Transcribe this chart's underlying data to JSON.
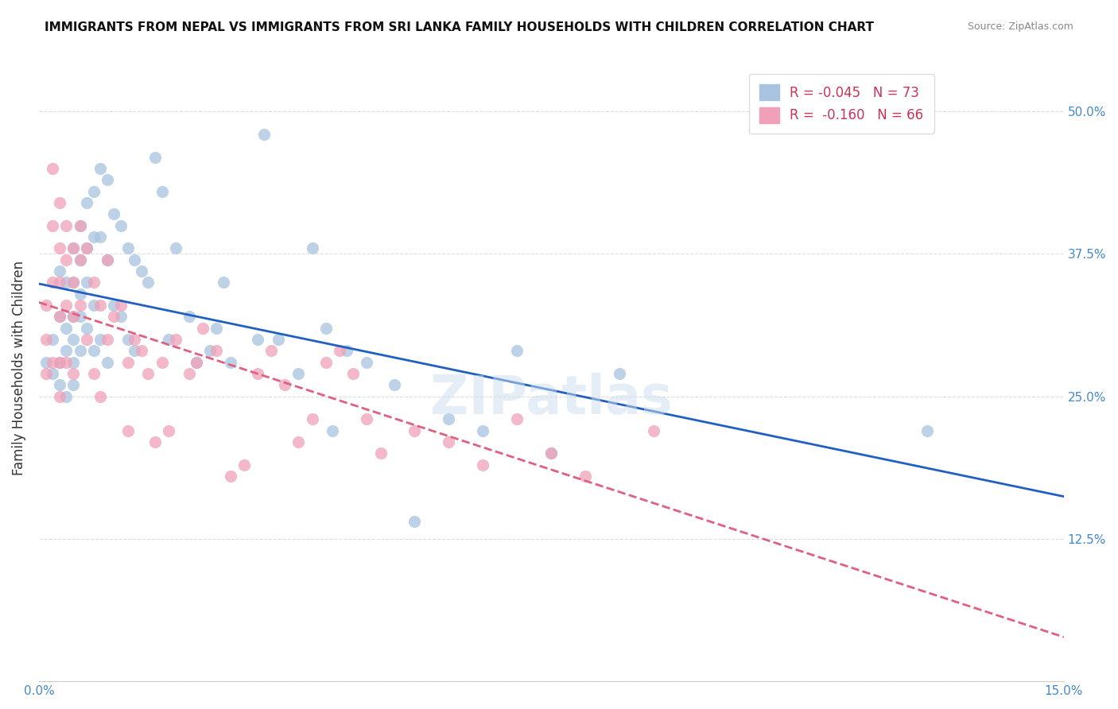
{
  "title": "IMMIGRANTS FROM NEPAL VS IMMIGRANTS FROM SRI LANKA FAMILY HOUSEHOLDS WITH CHILDREN CORRELATION CHART",
  "source": "Source: ZipAtlas.com",
  "xlabel": "",
  "ylabel": "Family Households with Children",
  "x_min": 0.0,
  "x_max": 0.15,
  "y_min": 0.0,
  "y_max": 0.55,
  "x_ticks": [
    0.0,
    0.03,
    0.06,
    0.09,
    0.12,
    0.15
  ],
  "x_tick_labels": [
    "0.0%",
    "",
    "",
    "",
    "",
    "15.0%"
  ],
  "y_ticks": [
    0.0,
    0.125,
    0.25,
    0.375,
    0.5
  ],
  "y_tick_labels": [
    "",
    "12.5%",
    "25.0%",
    "37.5%",
    "50.0%"
  ],
  "nepal_R": "-0.045",
  "nepal_N": "73",
  "srilanka_R": "-0.160",
  "srilanka_N": "66",
  "nepal_color": "#a8c4e0",
  "srilanka_color": "#f0a0b8",
  "nepal_line_color": "#2060c0",
  "srilanka_line_color": "#e06080",
  "grid_color": "#dddddd",
  "background_color": "#ffffff",
  "nepal_x": [
    0.001,
    0.002,
    0.002,
    0.003,
    0.003,
    0.003,
    0.003,
    0.004,
    0.004,
    0.004,
    0.004,
    0.005,
    0.005,
    0.005,
    0.005,
    0.005,
    0.005,
    0.006,
    0.006,
    0.006,
    0.006,
    0.006,
    0.007,
    0.007,
    0.007,
    0.007,
    0.008,
    0.008,
    0.008,
    0.008,
    0.009,
    0.009,
    0.009,
    0.01,
    0.01,
    0.01,
    0.011,
    0.011,
    0.012,
    0.012,
    0.013,
    0.013,
    0.014,
    0.014,
    0.015,
    0.016,
    0.017,
    0.018,
    0.019,
    0.02,
    0.022,
    0.023,
    0.025,
    0.026,
    0.027,
    0.028,
    0.032,
    0.033,
    0.035,
    0.038,
    0.04,
    0.042,
    0.043,
    0.045,
    0.048,
    0.052,
    0.055,
    0.06,
    0.065,
    0.07,
    0.075,
    0.085,
    0.13
  ],
  "nepal_y": [
    0.28,
    0.3,
    0.27,
    0.36,
    0.32,
    0.28,
    0.26,
    0.35,
    0.31,
    0.29,
    0.25,
    0.38,
    0.35,
    0.32,
    0.3,
    0.28,
    0.26,
    0.4,
    0.37,
    0.34,
    0.32,
    0.29,
    0.42,
    0.38,
    0.35,
    0.31,
    0.43,
    0.39,
    0.33,
    0.29,
    0.45,
    0.39,
    0.3,
    0.44,
    0.37,
    0.28,
    0.41,
    0.33,
    0.4,
    0.32,
    0.38,
    0.3,
    0.37,
    0.29,
    0.36,
    0.35,
    0.46,
    0.43,
    0.3,
    0.38,
    0.32,
    0.28,
    0.29,
    0.31,
    0.35,
    0.28,
    0.3,
    0.48,
    0.3,
    0.27,
    0.38,
    0.31,
    0.22,
    0.29,
    0.28,
    0.26,
    0.14,
    0.23,
    0.22,
    0.29,
    0.2,
    0.27,
    0.22
  ],
  "srilanka_x": [
    0.001,
    0.001,
    0.001,
    0.002,
    0.002,
    0.002,
    0.002,
    0.003,
    0.003,
    0.003,
    0.003,
    0.003,
    0.003,
    0.004,
    0.004,
    0.004,
    0.004,
    0.005,
    0.005,
    0.005,
    0.005,
    0.006,
    0.006,
    0.006,
    0.007,
    0.007,
    0.008,
    0.008,
    0.009,
    0.009,
    0.01,
    0.01,
    0.011,
    0.012,
    0.013,
    0.013,
    0.014,
    0.015,
    0.016,
    0.017,
    0.018,
    0.019,
    0.02,
    0.022,
    0.023,
    0.024,
    0.026,
    0.028,
    0.03,
    0.032,
    0.034,
    0.036,
    0.038,
    0.04,
    0.042,
    0.044,
    0.046,
    0.048,
    0.05,
    0.055,
    0.06,
    0.065,
    0.07,
    0.075,
    0.08,
    0.09
  ],
  "srilanka_y": [
    0.33,
    0.3,
    0.27,
    0.45,
    0.4,
    0.35,
    0.28,
    0.42,
    0.38,
    0.35,
    0.32,
    0.28,
    0.25,
    0.4,
    0.37,
    0.33,
    0.28,
    0.38,
    0.35,
    0.32,
    0.27,
    0.4,
    0.37,
    0.33,
    0.38,
    0.3,
    0.35,
    0.27,
    0.33,
    0.25,
    0.37,
    0.3,
    0.32,
    0.33,
    0.28,
    0.22,
    0.3,
    0.29,
    0.27,
    0.21,
    0.28,
    0.22,
    0.3,
    0.27,
    0.28,
    0.31,
    0.29,
    0.18,
    0.19,
    0.27,
    0.29,
    0.26,
    0.21,
    0.23,
    0.28,
    0.29,
    0.27,
    0.23,
    0.2,
    0.22,
    0.21,
    0.19,
    0.23,
    0.2,
    0.18,
    0.22
  ]
}
